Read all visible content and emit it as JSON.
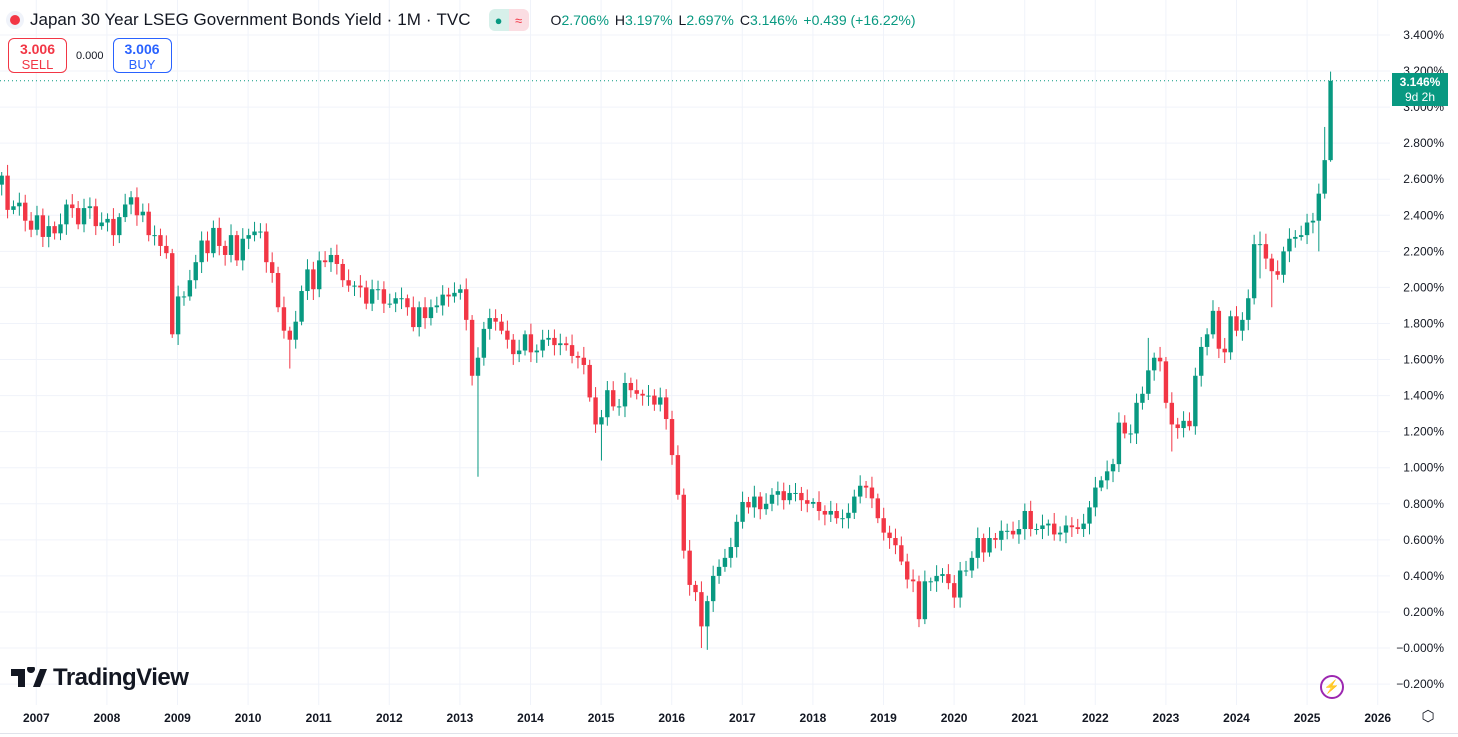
{
  "header": {
    "title": "Japan 30 Year LSEG Government Bonds Yield",
    "interval": "1M",
    "exchange": "TVC",
    "dot": "·",
    "status_icons": [
      "market-open-dot-icon",
      "approx-data-icon"
    ],
    "status_approx_glyph": "≈",
    "ohlc": {
      "o_label": "O",
      "o_value": "2.706%",
      "h_label": "H",
      "h_value": "3.197%",
      "l_label": "L",
      "l_value": "2.697%",
      "c_label": "C",
      "c_value": "3.146%",
      "change": "+0.439 (+16.22%)"
    }
  },
  "trade": {
    "sell_price": "3.006",
    "sell_label": "SELL",
    "spread": "0.000",
    "buy_price": "3.006",
    "buy_label": "BUY"
  },
  "last_price": {
    "value": "3.146%",
    "countdown": "9d 2h"
  },
  "branding": {
    "logo_text": "TradingView"
  },
  "colors": {
    "up": "#089981",
    "down": "#f23645",
    "grid": "#f0f3fa",
    "sell": "#f23645",
    "buy": "#2962ff"
  },
  "chart_data": {
    "type": "candlestick",
    "title": "Japan 30 Year LSEG Government Bonds Yield",
    "interval": "1M",
    "start": "2006-07",
    "end": "2025-05",
    "first_open": 2.57,
    "closes": [
      2.62,
      2.43,
      2.45,
      2.47,
      2.37,
      2.32,
      2.4,
      2.28,
      2.34,
      2.3,
      2.35,
      2.46,
      2.44,
      2.35,
      2.44,
      2.45,
      2.34,
      2.36,
      2.38,
      2.29,
      2.39,
      2.46,
      2.5,
      2.4,
      2.42,
      2.29,
      2.29,
      2.23,
      2.19,
      1.74,
      1.95,
      1.95,
      2.04,
      2.14,
      2.26,
      2.19,
      2.33,
      2.23,
      2.18,
      2.29,
      2.15,
      2.27,
      2.29,
      2.31,
      2.31,
      2.14,
      2.08,
      1.89,
      1.76,
      1.71,
      1.81,
      1.98,
      2.1,
      1.99,
      2.15,
      2.14,
      2.18,
      2.13,
      2.04,
      2.01,
      2.01,
      2.0,
      1.91,
      1.99,
      1.99,
      1.91,
      1.91,
      1.94,
      1.94,
      1.89,
      1.78,
      1.89,
      1.83,
      1.89,
      1.9,
      1.96,
      1.95,
      1.97,
      1.99,
      1.82,
      1.51,
      1.61,
      1.77,
      1.83,
      1.81,
      1.76,
      1.71,
      1.63,
      1.65,
      1.74,
      1.64,
      1.65,
      1.71,
      1.72,
      1.68,
      1.69,
      1.68,
      1.62,
      1.61,
      1.57,
      1.39,
      1.24,
      1.28,
      1.43,
      1.34,
      1.34,
      1.47,
      1.43,
      1.41,
      1.4,
      1.4,
      1.35,
      1.39,
      1.27,
      1.07,
      0.85,
      0.54,
      0.35,
      0.31,
      0.12,
      0.26,
      0.4,
      0.45,
      0.5,
      0.56,
      0.7,
      0.81,
      0.78,
      0.84,
      0.77,
      0.8,
      0.85,
      0.87,
      0.82,
      0.86,
      0.86,
      0.82,
      0.8,
      0.81,
      0.76,
      0.74,
      0.76,
      0.72,
      0.72,
      0.75,
      0.84,
      0.9,
      0.89,
      0.83,
      0.72,
      0.64,
      0.61,
      0.57,
      0.48,
      0.38,
      0.37,
      0.16,
      0.37,
      0.37,
      0.4,
      0.41,
      0.36,
      0.28,
      0.43,
      0.43,
      0.5,
      0.61,
      0.53,
      0.61,
      0.6,
      0.65,
      0.65,
      0.63,
      0.66,
      0.76,
      0.66,
      0.66,
      0.68,
      0.69,
      0.63,
      0.64,
      0.68,
      0.67,
      0.66,
      0.69,
      0.78,
      0.89,
      0.93,
      0.98,
      1.02,
      1.25,
      1.19,
      1.19,
      1.36,
      1.41,
      1.54,
      1.61,
      1.59,
      1.36,
      1.24,
      1.22,
      1.26,
      1.23,
      1.51,
      1.67,
      1.74,
      1.87,
      1.66,
      1.64,
      1.84,
      1.76,
      1.82,
      1.94,
      2.24,
      2.24,
      2.16,
      2.09,
      2.07,
      2.2,
      2.27,
      2.28,
      2.29,
      2.36,
      2.37,
      2.52,
      2.706,
      3.146
    ],
    "wick_overrides": {
      "29": {
        "low": 1.72
      },
      "49": {
        "low": 1.55
      },
      "81": {
        "low": 0.95
      },
      "102": {
        "low": 1.04
      },
      "119": {
        "low": 0.0
      },
      "120": {
        "low": -0.01
      },
      "195": {
        "high": 1.72
      },
      "199": {
        "low": 1.09
      },
      "214": {
        "high": 2.31,
        "low": 2.05
      },
      "216": {
        "low": 1.89
      },
      "224": {
        "low": 2.2
      },
      "225": {
        "high": 2.89
      },
      "226": {
        "high": 3.197,
        "low": 2.697
      }
    },
    "ylim": [
      -0.25,
      3.5
    ],
    "y_ticks": [
      3.4,
      3.2,
      3.0,
      2.8,
      2.6,
      2.4,
      2.2,
      2.0,
      1.8,
      1.6,
      1.4,
      1.2,
      1.0,
      0.8,
      0.6,
      0.4,
      0.2,
      0.0,
      -0.2
    ],
    "y_tick_labels": [
      "3.400%",
      "3.200%",
      "3.000%",
      "2.800%",
      "2.600%",
      "2.400%",
      "2.200%",
      "2.000%",
      "1.800%",
      "1.600%",
      "1.400%",
      "1.200%",
      "1.000%",
      "0.800%",
      "0.600%",
      "0.400%",
      "0.200%",
      "−0.000%",
      "−0.200%"
    ],
    "x_tick_labels": [
      "2007",
      "2008",
      "2009",
      "2010",
      "2011",
      "2012",
      "2013",
      "2014",
      "2015",
      "2016",
      "2017",
      "2018",
      "2019",
      "2020",
      "2021",
      "2022",
      "2023",
      "2024",
      "2025",
      "2026"
    ],
    "last_value": 3.146,
    "grid": true
  }
}
